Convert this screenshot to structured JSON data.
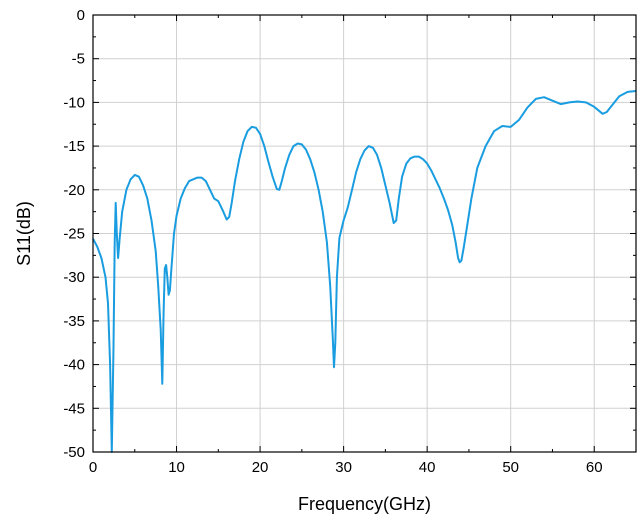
{
  "chart_data": {
    "type": "line",
    "title": "",
    "xlabel": "Frequency(GHz)",
    "ylabel": "S11(dB)",
    "xlim": [
      0,
      65
    ],
    "ylim": [
      -50,
      0
    ],
    "grid": true,
    "line_color": "#1a9de0",
    "axis_color": "#000000",
    "grid_color": "#d0d0d0",
    "x_ticks": [
      0,
      10,
      20,
      30,
      40,
      50,
      60
    ],
    "x_tick_labels": [
      "0",
      "10",
      "20",
      "30",
      "40",
      "50",
      "60"
    ],
    "y_ticks": [
      0,
      -5,
      -10,
      -15,
      -20,
      -25,
      -30,
      -35,
      -40,
      -45,
      -50
    ],
    "y_tick_labels": [
      "0",
      "-5",
      "-10",
      "-15",
      "-20",
      "-25",
      "-30",
      "-35",
      "-40",
      "-45",
      "-50"
    ],
    "series": [
      {
        "x": [
          0,
          0.5,
          1.0,
          1.5,
          1.8,
          2.05,
          2.25,
          2.45,
          2.6,
          2.72,
          2.85,
          3.0,
          3.2,
          3.5,
          4.0,
          4.5,
          5.0,
          5.5,
          6.0,
          6.5,
          7.0,
          7.5,
          7.8,
          8.1,
          8.3,
          8.45,
          8.6,
          8.75,
          8.9,
          9.05,
          9.2,
          9.35,
          9.5,
          9.7,
          10.0,
          10.5,
          11.0,
          11.5,
          12.0,
          12.5,
          13.0,
          13.5,
          14.0,
          14.5,
          15.0,
          15.5,
          16.0,
          16.3,
          16.6,
          17.0,
          17.5,
          18.0,
          18.5,
          19.0,
          19.5,
          20.0,
          20.5,
          21.0,
          21.5,
          22.0,
          22.3,
          22.6,
          23.0,
          23.5,
          24.0,
          24.5,
          25.0,
          25.5,
          26.0,
          26.5,
          27.0,
          27.5,
          28.0,
          28.4,
          28.7,
          28.85,
          29.0,
          29.2,
          29.5,
          30.0,
          30.5,
          31.0,
          31.5,
          32.0,
          32.5,
          33.0,
          33.5,
          34.0,
          34.5,
          35.0,
          35.5,
          36.0,
          36.3,
          36.6,
          37.0,
          37.5,
          38.0,
          38.5,
          39.0,
          39.5,
          40.0,
          40.5,
          41.0,
          41.5,
          42.0,
          42.5,
          43.0,
          43.4,
          43.7,
          43.9,
          44.1,
          44.4,
          44.8,
          45.3,
          46.0,
          47.0,
          48.0,
          49.0,
          50.0,
          51.0,
          52.0,
          53.0,
          54.0,
          55.0,
          56.0,
          57.0,
          58.0,
          59.0,
          60.0,
          60.5,
          61.0,
          61.5,
          62.0,
          62.5,
          63.0,
          64.0,
          65.0
        ],
        "y": [
          -25.6,
          -26.5,
          -27.8,
          -30.0,
          -33.0,
          -40.0,
          -50.0,
          -38.0,
          -26.0,
          -21.5,
          -25.0,
          -27.8,
          -25.5,
          -22.5,
          -20.0,
          -18.8,
          -18.3,
          -18.5,
          -19.5,
          -21.0,
          -23.5,
          -27.0,
          -31.0,
          -36.0,
          -42.2,
          -34.0,
          -29.0,
          -28.6,
          -30.0,
          -32.0,
          -31.5,
          -29.5,
          -27.5,
          -25.0,
          -23.0,
          -21.0,
          -19.8,
          -19.0,
          -18.8,
          -18.6,
          -18.6,
          -19.0,
          -20.0,
          -21.0,
          -21.3,
          -22.3,
          -23.4,
          -23.1,
          -21.5,
          -19.0,
          -16.5,
          -14.5,
          -13.3,
          -12.8,
          -12.9,
          -13.6,
          -15.0,
          -16.8,
          -18.5,
          -19.9,
          -20.0,
          -19.0,
          -17.5,
          -16.0,
          -15.0,
          -14.7,
          -14.8,
          -15.4,
          -16.5,
          -18.0,
          -20.0,
          -22.5,
          -26.0,
          -31.0,
          -37.0,
          -40.3,
          -37.5,
          -30.0,
          -25.5,
          -23.5,
          -22.0,
          -20.0,
          -18.0,
          -16.5,
          -15.5,
          -15.0,
          -15.2,
          -16.0,
          -17.5,
          -19.5,
          -21.5,
          -23.8,
          -23.5,
          -21.0,
          -18.5,
          -17.0,
          -16.4,
          -16.2,
          -16.2,
          -16.5,
          -17.0,
          -17.8,
          -18.8,
          -19.8,
          -21.0,
          -22.3,
          -24.0,
          -26.0,
          -27.8,
          -28.3,
          -28.1,
          -26.5,
          -24.0,
          -21.0,
          -17.5,
          -15.0,
          -13.3,
          -12.7,
          -12.8,
          -12.0,
          -10.6,
          -9.6,
          -9.4,
          -9.8,
          -10.2,
          -10.0,
          -9.9,
          -10.0,
          -10.5,
          -10.9,
          -11.3,
          -11.1,
          -10.5,
          -9.9,
          -9.3,
          -8.8,
          -8.7
        ]
      }
    ]
  }
}
